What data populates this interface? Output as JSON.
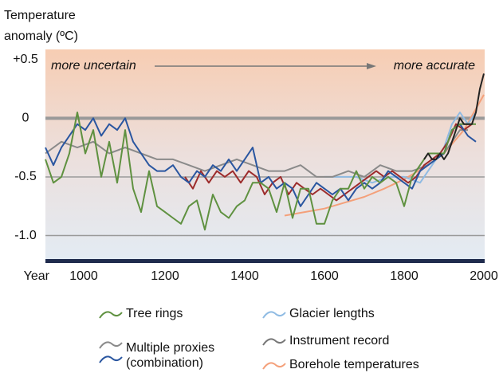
{
  "chart_data": {
    "type": "line",
    "y_label": [
      "Temperature",
      "anomaly (ºC)"
    ],
    "x_label": "Year",
    "annotations": [
      "more uncertain",
      "more accurate"
    ],
    "xlim": [
      900,
      2000
    ],
    "xticks": [
      1000,
      1200,
      1400,
      1600,
      1800,
      2000
    ],
    "ylim": [
      -1.2,
      0.6
    ],
    "yticks": [
      {
        "value": 0.5,
        "label": "+0.5"
      },
      0,
      -0.5,
      {
        "value": -1,
        "label": "-1.0"
      }
    ],
    "grid": true,
    "series": [
      {
        "name": "Tree rings",
        "color": "#5f9140",
        "x": [
          900,
          920,
          940,
          960,
          980,
          1000,
          1020,
          1040,
          1060,
          1080,
          1100,
          1120,
          1140,
          1160,
          1180,
          1200,
          1220,
          1240,
          1260,
          1280,
          1300,
          1320,
          1340,
          1360,
          1380,
          1400,
          1420,
          1440,
          1460,
          1480,
          1500,
          1520,
          1540,
          1560,
          1580,
          1600,
          1620,
          1640,
          1660,
          1680,
          1700,
          1720,
          1740,
          1760,
          1780,
          1800,
          1820,
          1840,
          1860,
          1880,
          1900,
          1920,
          1940,
          1960,
          1980
        ],
        "values": [
          -0.35,
          -0.55,
          -0.5,
          -0.3,
          0.05,
          -0.3,
          -0.1,
          -0.5,
          -0.2,
          -0.55,
          -0.1,
          -0.6,
          -0.8,
          -0.45,
          -0.75,
          -0.8,
          -0.85,
          -0.9,
          -0.75,
          -0.7,
          -0.95,
          -0.65,
          -0.8,
          -0.85,
          -0.75,
          -0.7,
          -0.55,
          -0.55,
          -0.6,
          -0.8,
          -0.55,
          -0.85,
          -0.6,
          -0.6,
          -0.9,
          -0.9,
          -0.7,
          -0.6,
          -0.6,
          -0.45,
          -0.6,
          -0.5,
          -0.55,
          -0.5,
          -0.55,
          -0.75,
          -0.5,
          -0.4,
          -0.3,
          -0.3,
          -0.3,
          -0.1,
          -0.05,
          -0.05,
          -0.05
        ]
      },
      {
        "name": "Multiple proxies",
        "color": "#8a8a8a",
        "x": [
          900,
          940,
          980,
          1020,
          1060,
          1100,
          1140,
          1180,
          1220,
          1260,
          1300,
          1340,
          1380,
          1420,
          1460,
          1500,
          1540,
          1580,
          1620,
          1660,
          1700,
          1740,
          1780,
          1820,
          1860,
          1900,
          1940,
          1960
        ],
        "values": [
          -0.3,
          -0.2,
          -0.25,
          -0.2,
          -0.3,
          -0.25,
          -0.3,
          -0.35,
          -0.35,
          -0.4,
          -0.45,
          -0.4,
          -0.35,
          -0.4,
          -0.45,
          -0.45,
          -0.4,
          -0.5,
          -0.5,
          -0.45,
          -0.5,
          -0.4,
          -0.45,
          -0.45,
          -0.4,
          -0.3,
          -0.1,
          -0.1
        ]
      },
      {
        "name": "(combination)",
        "color": "#2a56a0",
        "x": [
          900,
          920,
          940,
          960,
          980,
          1000,
          1020,
          1040,
          1060,
          1080,
          1100,
          1120,
          1140,
          1160,
          1180,
          1200,
          1220,
          1240,
          1260,
          1280,
          1300,
          1320,
          1340,
          1360,
          1380,
          1400,
          1420,
          1440,
          1460,
          1480,
          1500,
          1520,
          1540,
          1560,
          1580,
          1600,
          1620,
          1640,
          1660,
          1680,
          1700,
          1720,
          1740,
          1760,
          1780,
          1800,
          1820,
          1840,
          1860,
          1880,
          1900,
          1920,
          1940,
          1960,
          1980
        ],
        "values": [
          -0.25,
          -0.4,
          -0.25,
          -0.15,
          -0.05,
          -0.1,
          0,
          -0.15,
          -0.05,
          -0.1,
          0,
          -0.2,
          -0.3,
          -0.4,
          -0.45,
          -0.45,
          -0.4,
          -0.5,
          -0.55,
          -0.45,
          -0.5,
          -0.4,
          -0.45,
          -0.35,
          -0.45,
          -0.35,
          -0.25,
          -0.55,
          -0.5,
          -0.6,
          -0.55,
          -0.6,
          -0.75,
          -0.65,
          -0.55,
          -0.6,
          -0.65,
          -0.6,
          -0.7,
          -0.6,
          -0.55,
          -0.6,
          -0.55,
          -0.45,
          -0.5,
          -0.55,
          -0.6,
          -0.45,
          -0.4,
          -0.35,
          -0.3,
          -0.1,
          -0.05,
          -0.15,
          -0.2
        ]
      },
      {
        "color": "#9c2b2b",
        "x": [
          1250,
          1270,
          1290,
          1310,
          1330,
          1350,
          1370,
          1390,
          1410,
          1430,
          1450,
          1470,
          1490,
          1510,
          1530,
          1550,
          1570,
          1590,
          1610,
          1630,
          1650,
          1670,
          1690,
          1710,
          1730,
          1750,
          1770,
          1790,
          1810,
          1830,
          1850,
          1870,
          1890,
          1910,
          1930,
          1950,
          1970
        ],
        "values": [
          -0.5,
          -0.6,
          -0.45,
          -0.55,
          -0.45,
          -0.5,
          -0.45,
          -0.55,
          -0.45,
          -0.5,
          -0.65,
          -0.55,
          -0.5,
          -0.65,
          -0.55,
          -0.6,
          -0.65,
          -0.6,
          -0.65,
          -0.7,
          -0.65,
          -0.6,
          -0.55,
          -0.5,
          -0.45,
          -0.5,
          -0.45,
          -0.5,
          -0.55,
          -0.5,
          -0.4,
          -0.35,
          -0.3,
          -0.2,
          -0.05,
          -0.1,
          -0.05
        ]
      },
      {
        "name": "Glacier lengths",
        "color": "#8fbbe3",
        "x": [
          1600,
          1640,
          1680,
          1720,
          1760,
          1800,
          1840,
          1860,
          1880,
          1900,
          1920,
          1940,
          1960,
          1980
        ],
        "values": [
          -0.5,
          -0.5,
          -0.5,
          -0.55,
          -0.5,
          -0.5,
          -0.55,
          -0.45,
          -0.35,
          -0.25,
          -0.05,
          0.05,
          -0.05,
          0.05
        ]
      },
      {
        "name": "Instrument record",
        "color": "#222222",
        "x": [
          1850,
          1860,
          1870,
          1880,
          1890,
          1900,
          1910,
          1920,
          1930,
          1940,
          1950,
          1960,
          1970,
          1980,
          1990,
          2000
        ],
        "values": [
          -0.35,
          -0.3,
          -0.35,
          -0.35,
          -0.3,
          -0.35,
          -0.3,
          -0.2,
          -0.1,
          0,
          -0.05,
          -0.05,
          -0.05,
          0.05,
          0.25,
          0.38
        ]
      },
      {
        "name": "Borehole temperatures",
        "color": "#f4a07a",
        "x": [
          1500,
          1550,
          1600,
          1650,
          1700,
          1750,
          1800,
          1850,
          1900,
          1950,
          2000
        ],
        "values": [
          -0.83,
          -0.8,
          -0.77,
          -0.72,
          -0.67,
          -0.6,
          -0.52,
          -0.42,
          -0.3,
          -0.1,
          0.2
        ]
      }
    ]
  }
}
